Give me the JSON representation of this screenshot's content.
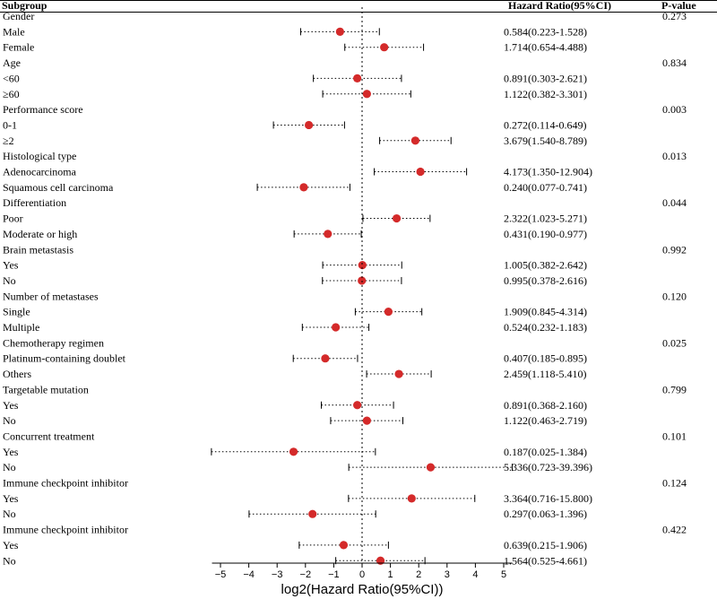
{
  "chart_data": {
    "type": "forest",
    "header": {
      "subgroup": "Subgroup",
      "hr": "Hazard Ratio(95%CI)",
      "p": "P-value"
    },
    "xlabel": "log2(Hazard Ratio(95%CI))",
    "xlim": [
      -5.3,
      5.3
    ],
    "ticks": [
      -5,
      -4,
      -3,
      -2,
      -1,
      0,
      1,
      2,
      3,
      4,
      5
    ],
    "tick_labels": [
      "−5",
      "−4",
      "−3",
      "−2",
      "−1",
      "0",
      "1",
      "2",
      "3",
      "4",
      "5"
    ],
    "reference_line": 0,
    "rows": [
      {
        "kind": "group",
        "label": "Gender",
        "p": "0.273"
      },
      {
        "kind": "item",
        "label": "Male",
        "hr_text": "0.584(0.223-1.528)",
        "est": -0.78,
        "lo": -2.17,
        "hi": 0.61
      },
      {
        "kind": "item",
        "label": "Female",
        "hr_text": "1.714(0.654-4.488)",
        "est": 0.78,
        "lo": -0.61,
        "hi": 2.17
      },
      {
        "kind": "group",
        "label": "Age",
        "p": "0.834"
      },
      {
        "kind": "item",
        "label": "<60",
        "hr_text": "0.891(0.303-2.621)",
        "est": -0.17,
        "lo": -1.72,
        "hi": 1.39
      },
      {
        "kind": "item",
        "label": "≥60",
        "hr_text": "1.122(0.382-3.301)",
        "est": 0.17,
        "lo": -1.39,
        "hi": 1.72
      },
      {
        "kind": "group",
        "label": "Performance score",
        "p": "0.003"
      },
      {
        "kind": "item",
        "label": "0-1",
        "hr_text": "0.272(0.114-0.649)",
        "est": -1.88,
        "lo": -3.13,
        "hi": -0.62
      },
      {
        "kind": "item",
        "label": "≥2",
        "hr_text": "3.679(1.540-8.789)",
        "est": 1.88,
        "lo": 0.62,
        "hi": 3.14
      },
      {
        "kind": "group",
        "label": "Histological type",
        "p": "0.013"
      },
      {
        "kind": "item",
        "label": "Adenocarcinoma",
        "hr_text": "4.173(1.350-12.904)",
        "est": 2.06,
        "lo": 0.43,
        "hi": 3.69
      },
      {
        "kind": "item",
        "label": "Squamous cell carcinoma",
        "hr_text": "0.240(0.077-0.741)",
        "est": -2.06,
        "lo": -3.7,
        "hi": -0.43
      },
      {
        "kind": "group",
        "label": "Differentiation",
        "p": "0.044"
      },
      {
        "kind": "item",
        "label": "Poor",
        "hr_text": "2.322(1.023-5.271)",
        "est": 1.22,
        "lo": 0.03,
        "hi": 2.4
      },
      {
        "kind": "item",
        "label": "Moderate or high",
        "hr_text": "0.431(0.190-0.977)",
        "est": -1.21,
        "lo": -2.4,
        "hi": -0.03
      },
      {
        "kind": "group",
        "label": "Brain metastasis",
        "p": "0.992"
      },
      {
        "kind": "item",
        "label": "Yes",
        "hr_text": "1.005(0.382-2.642)",
        "est": 0.01,
        "lo": -1.39,
        "hi": 1.4
      },
      {
        "kind": "item",
        "label": "No",
        "hr_text": "0.995(0.378-2.616)",
        "est": -0.01,
        "lo": -1.4,
        "hi": 1.39
      },
      {
        "kind": "group",
        "label": "Number of metastases",
        "p": "0.120"
      },
      {
        "kind": "item",
        "label": "Single",
        "hr_text": "1.909(0.845-4.314)",
        "est": 0.93,
        "lo": -0.24,
        "hi": 2.11
      },
      {
        "kind": "item",
        "label": "Multiple",
        "hr_text": "0.524(0.232-1.183)",
        "est": -0.93,
        "lo": -2.11,
        "hi": 0.24
      },
      {
        "kind": "group",
        "label": "Chemotherapy regimen",
        "p": "0.025"
      },
      {
        "kind": "item",
        "label": "Platinum-containing doublet",
        "hr_text": "0.407(0.185-0.895)",
        "est": -1.3,
        "lo": -2.43,
        "hi": -0.16
      },
      {
        "kind": "item",
        "label": "Others",
        "hr_text": "2.459(1.118-5.410)",
        "est": 1.3,
        "lo": 0.16,
        "hi": 2.44
      },
      {
        "kind": "group",
        "label": "Targetable mutation",
        "p": "0.799"
      },
      {
        "kind": "item",
        "label": "Yes",
        "hr_text": "0.891(0.368-2.160)",
        "est": -0.17,
        "lo": -1.44,
        "hi": 1.11
      },
      {
        "kind": "item",
        "label": "No",
        "hr_text": "1.122(0.463-2.719)",
        "est": 0.17,
        "lo": -1.11,
        "hi": 1.44
      },
      {
        "kind": "group",
        "label": "Concurrent treatment",
        "p": "0.101"
      },
      {
        "kind": "item",
        "label": "Yes",
        "hr_text": "0.187(0.025-1.384)",
        "est": -2.42,
        "lo": -5.32,
        "hi": 0.47
      },
      {
        "kind": "item",
        "label": "No",
        "hr_text": "5.336(0.723-39.396)",
        "est": 2.42,
        "lo": -0.47,
        "hi": 5.3
      },
      {
        "kind": "group",
        "label": "Immune checkpoint inhibitor",
        "p": "0.124"
      },
      {
        "kind": "item",
        "label": "Yes",
        "hr_text": "3.364(0.716-15.800)",
        "est": 1.75,
        "lo": -0.48,
        "hi": 3.98
      },
      {
        "kind": "item",
        "label": "No",
        "hr_text": "0.297(0.063-1.396)",
        "est": -1.75,
        "lo": -3.99,
        "hi": 0.48
      },
      {
        "kind": "group",
        "label": "Immune checkpoint inhibitor",
        "p": "0.422"
      },
      {
        "kind": "item",
        "label": "Yes",
        "hr_text": "0.639(0.215-1.906)",
        "est": -0.65,
        "lo": -2.22,
        "hi": 0.93
      },
      {
        "kind": "item",
        "label": "No",
        "hr_text": "1.564(0.525-4.661)",
        "est": 0.65,
        "lo": -0.93,
        "hi": 2.22
      }
    ]
  },
  "colors": {
    "point": "#d42a2a",
    "line": "#000000",
    "text": "#111111"
  }
}
